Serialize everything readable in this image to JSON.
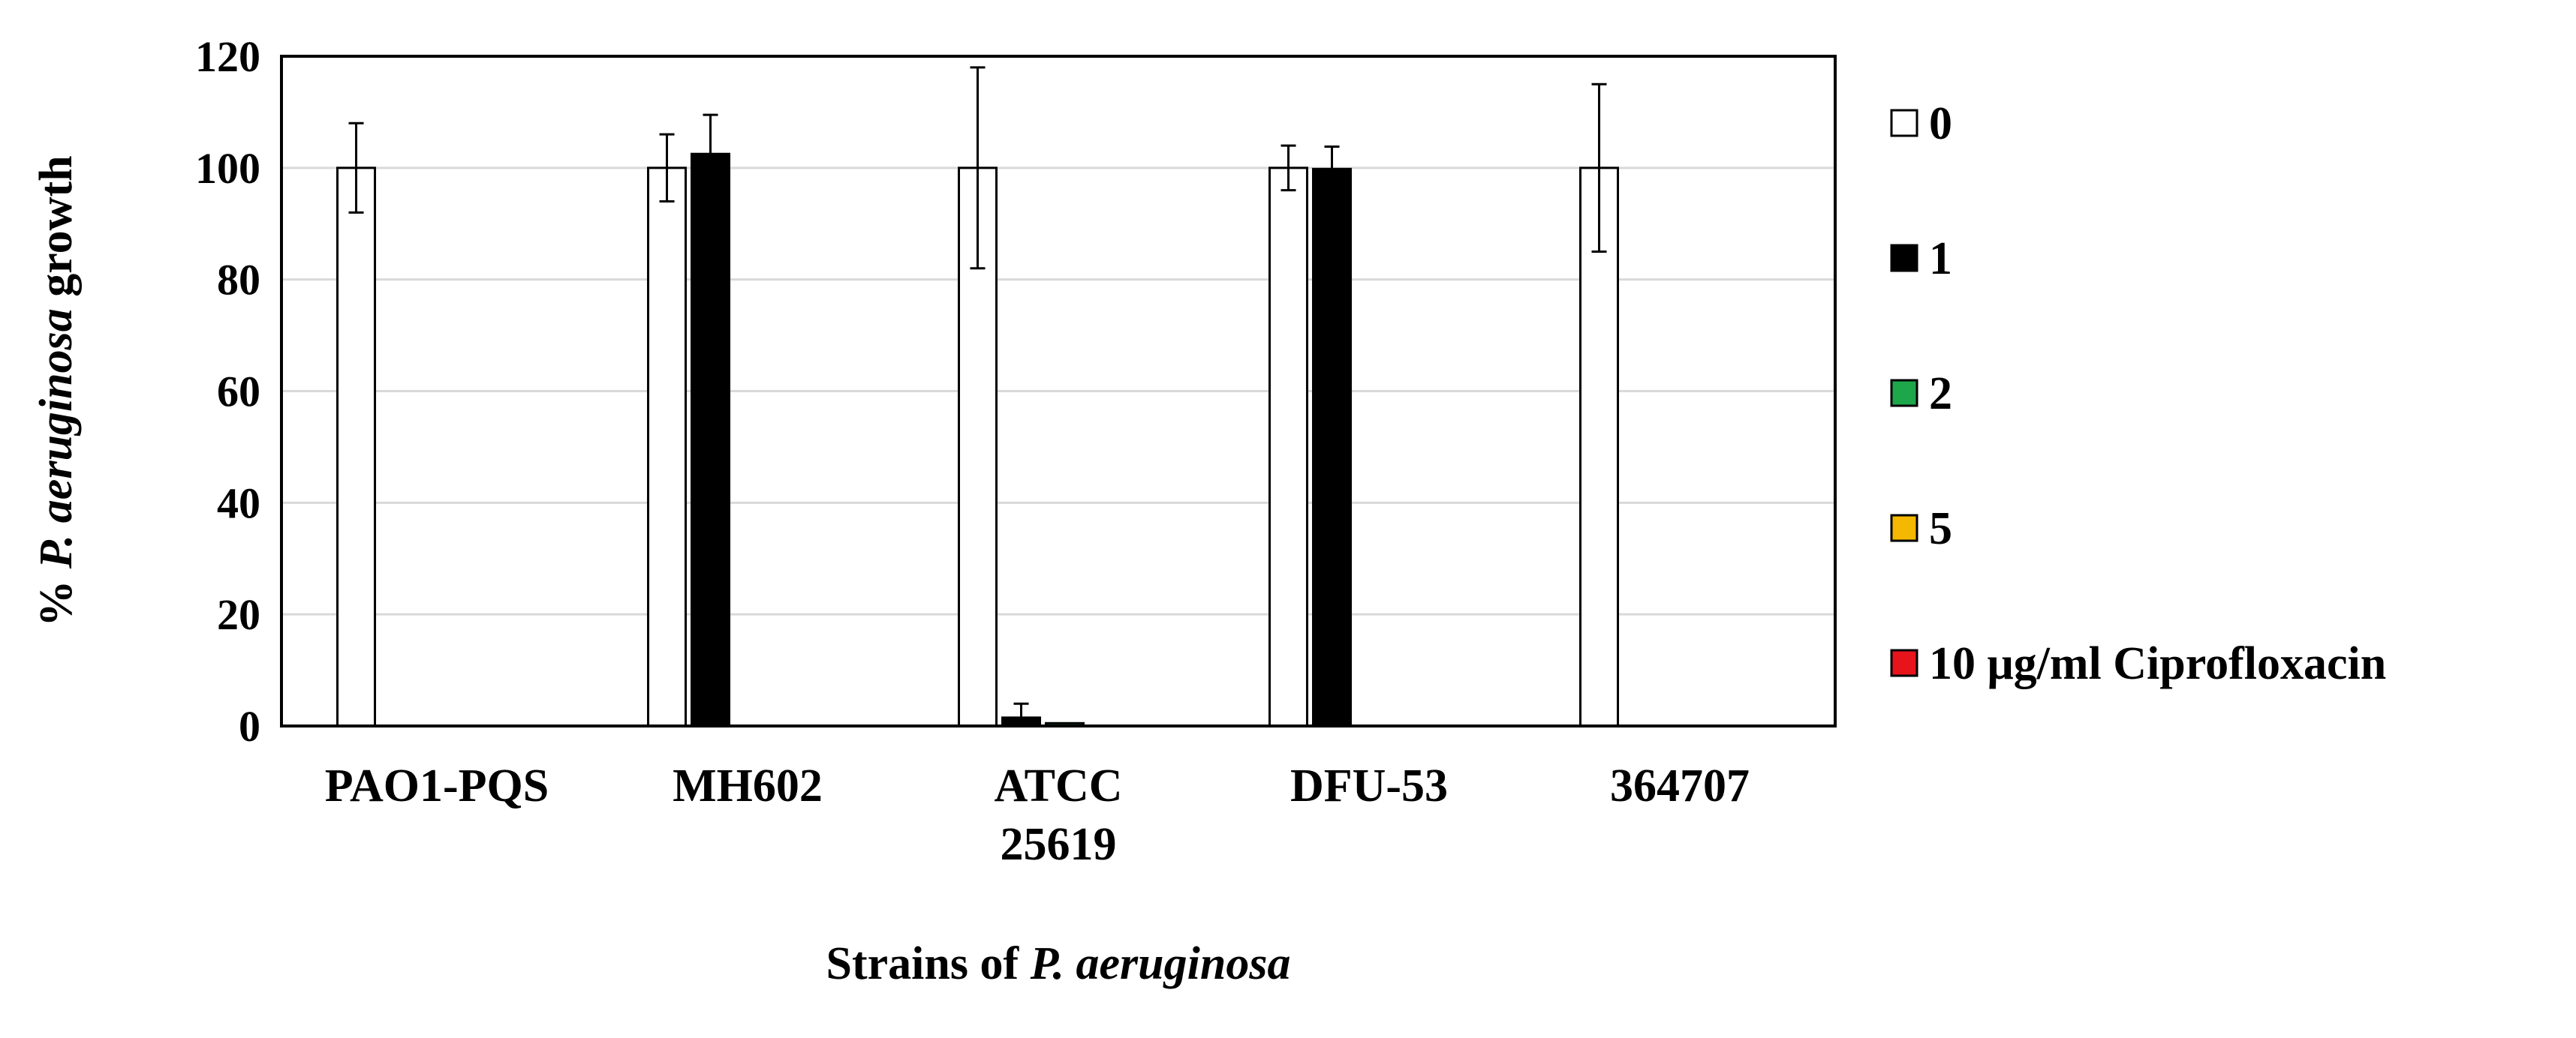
{
  "chart_data": {
    "type": "bar",
    "categories": [
      [
        "PAO1-PQS"
      ],
      [
        "MH602"
      ],
      [
        "ATCC",
        "25619"
      ],
      [
        "DFU-53"
      ],
      [
        "364707"
      ]
    ],
    "series": [
      {
        "name": "0",
        "color": "#ffffff",
        "values": [
          100,
          100,
          100,
          100,
          100
        ],
        "errors": [
          8,
          6,
          18,
          4,
          15
        ]
      },
      {
        "name": "1",
        "color": "#000000",
        "values": [
          0,
          102.5,
          1.5,
          99.8,
          0
        ],
        "errors": [
          0,
          7,
          2.5,
          4,
          0
        ]
      },
      {
        "name": "2",
        "color": "#1ea64b",
        "values": [
          0,
          0,
          0.5,
          0,
          0
        ],
        "errors": [
          0,
          0,
          0,
          0,
          0
        ]
      },
      {
        "name": "5",
        "color": "#f5b800",
        "values": [
          0,
          0,
          0,
          0,
          0
        ],
        "errors": [
          0,
          0,
          0,
          0,
          0
        ]
      },
      {
        "name": "10 μg/ml Ciprofloxacin",
        "color": "#e8141b",
        "values": [
          0,
          0,
          0,
          0,
          0
        ],
        "errors": [
          0,
          0,
          0,
          0,
          0
        ]
      }
    ],
    "ylim": [
      0,
      120
    ],
    "yticks": [
      "0",
      "20",
      "40",
      "60",
      "80",
      "100",
      "120"
    ],
    "grid": true,
    "legend_position": "right",
    "ylabel": {
      "prefix": "% ",
      "italic": "P. aeruginosa",
      "suffix": " growth"
    },
    "xlabel": {
      "prefix": "Strains of ",
      "italic": "P. aeruginosa",
      "suffix": ""
    }
  }
}
